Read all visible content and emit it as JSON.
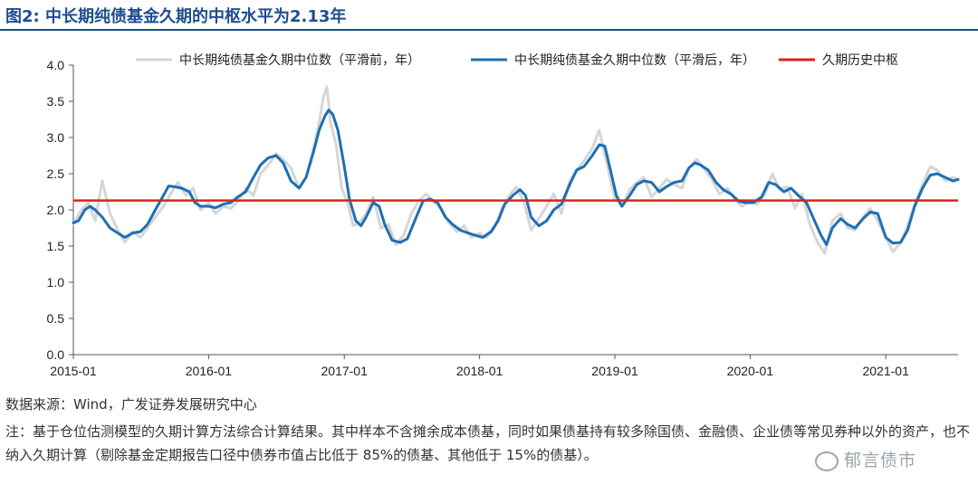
{
  "title": "图2:  中长期纯债基金久期的中枢水平为2.13年",
  "source": "数据来源：Wind，广发证券发展研究中心",
  "note": "注：基于仓位估测模型的久期计算方法综合计算结果。其中样本不含摊余成本债基，同时如果债基持有较多除国债、金融债、企业债等常见券种以外的资产，也不纳入久期计算（剔除基金定期报告口径中债券市值占比低于 85%的债基、其他低于 15%的债基）。",
  "watermark": "郁言债市",
  "chart_data": {
    "type": "line",
    "title": "",
    "xlabel": "",
    "ylabel": "",
    "x_ticks": [
      "2015-01",
      "2016-01",
      "2017-01",
      "2018-01",
      "2019-01",
      "2020-01",
      "2021-01"
    ],
    "y_ticks": [
      "0.0",
      "0.5",
      "1.0",
      "1.5",
      "2.0",
      "2.5",
      "3.0",
      "3.5",
      "4.0"
    ],
    "ylim": [
      0,
      4
    ],
    "xlim": [
      "2015-01-01",
      "2021-07-15"
    ],
    "legend_position": "top",
    "grid": false,
    "reference_line": {
      "name": "久期历史中枢",
      "value": 2.13,
      "color": "#e02020"
    },
    "series": [
      {
        "name": "中长期纯债基金久期中位数（平滑前，年）",
        "color": "#d6d6d6",
        "width": 3,
        "points": [
          [
            "2015-01-01",
            1.8
          ],
          [
            "2015-01-20",
            1.98
          ],
          [
            "2015-02-10",
            2.1
          ],
          [
            "2015-03-01",
            1.85
          ],
          [
            "2015-03-20",
            2.4
          ],
          [
            "2015-04-10",
            1.95
          ],
          [
            "2015-05-01",
            1.72
          ],
          [
            "2015-05-20",
            1.55
          ],
          [
            "2015-06-10",
            1.7
          ],
          [
            "2015-07-01",
            1.62
          ],
          [
            "2015-07-20",
            1.75
          ],
          [
            "2015-08-10",
            1.9
          ],
          [
            "2015-09-01",
            2.05
          ],
          [
            "2015-09-20",
            2.22
          ],
          [
            "2015-10-10",
            2.38
          ],
          [
            "2015-11-01",
            2.2
          ],
          [
            "2015-11-20",
            2.3
          ],
          [
            "2015-12-10",
            2.0
          ],
          [
            "2016-01-01",
            2.1
          ],
          [
            "2016-01-20",
            1.95
          ],
          [
            "2016-02-10",
            2.05
          ],
          [
            "2016-03-01",
            2.02
          ],
          [
            "2016-03-20",
            2.12
          ],
          [
            "2016-04-10",
            2.3
          ],
          [
            "2016-05-01",
            2.2
          ],
          [
            "2016-05-20",
            2.5
          ],
          [
            "2016-06-10",
            2.62
          ],
          [
            "2016-07-01",
            2.78
          ],
          [
            "2016-07-20",
            2.7
          ],
          [
            "2016-08-10",
            2.58
          ],
          [
            "2016-09-01",
            2.3
          ],
          [
            "2016-09-20",
            2.45
          ],
          [
            "2016-10-10",
            2.85
          ],
          [
            "2016-10-25",
            3.2
          ],
          [
            "2016-11-05",
            3.55
          ],
          [
            "2016-11-15",
            3.7
          ],
          [
            "2016-11-25",
            3.2
          ],
          [
            "2016-12-10",
            2.9
          ],
          [
            "2016-12-25",
            2.3
          ],
          [
            "2017-01-10",
            2.1
          ],
          [
            "2017-01-25",
            1.78
          ],
          [
            "2017-02-10",
            1.82
          ],
          [
            "2017-03-01",
            1.95
          ],
          [
            "2017-03-20",
            2.18
          ],
          [
            "2017-04-10",
            1.75
          ],
          [
            "2017-05-01",
            1.8
          ],
          [
            "2017-05-20",
            1.52
          ],
          [
            "2017-06-10",
            1.65
          ],
          [
            "2017-07-01",
            1.95
          ],
          [
            "2017-07-20",
            2.12
          ],
          [
            "2017-08-10",
            2.22
          ],
          [
            "2017-09-01",
            2.1
          ],
          [
            "2017-09-20",
            2.02
          ],
          [
            "2017-10-10",
            1.82
          ],
          [
            "2017-11-01",
            1.7
          ],
          [
            "2017-11-20",
            1.78
          ],
          [
            "2017-12-10",
            1.62
          ],
          [
            "2018-01-01",
            1.68
          ],
          [
            "2018-01-20",
            1.62
          ],
          [
            "2018-02-10",
            1.75
          ],
          [
            "2018-03-01",
            2.0
          ],
          [
            "2018-03-20",
            2.18
          ],
          [
            "2018-04-10",
            2.32
          ],
          [
            "2018-05-01",
            2.1
          ],
          [
            "2018-05-20",
            1.72
          ],
          [
            "2018-06-10",
            1.88
          ],
          [
            "2018-07-01",
            2.05
          ],
          [
            "2018-07-20",
            2.22
          ],
          [
            "2018-08-10",
            1.95
          ],
          [
            "2018-09-01",
            2.4
          ],
          [
            "2018-09-20",
            2.55
          ],
          [
            "2018-10-10",
            2.68
          ],
          [
            "2018-11-01",
            2.85
          ],
          [
            "2018-11-20",
            3.1
          ],
          [
            "2018-12-10",
            2.65
          ],
          [
            "2019-01-01",
            2.15
          ],
          [
            "2019-01-20",
            2.05
          ],
          [
            "2019-02-10",
            2.28
          ],
          [
            "2019-03-01",
            2.38
          ],
          [
            "2019-03-20",
            2.45
          ],
          [
            "2019-04-10",
            2.18
          ],
          [
            "2019-05-01",
            2.3
          ],
          [
            "2019-05-20",
            2.42
          ],
          [
            "2019-06-10",
            2.35
          ],
          [
            "2019-07-01",
            2.3
          ],
          [
            "2019-07-20",
            2.58
          ],
          [
            "2019-08-10",
            2.7
          ],
          [
            "2019-09-01",
            2.55
          ],
          [
            "2019-09-20",
            2.42
          ],
          [
            "2019-10-10",
            2.22
          ],
          [
            "2019-11-01",
            2.3
          ],
          [
            "2019-11-20",
            2.15
          ],
          [
            "2019-12-10",
            2.05
          ],
          [
            "2020-01-01",
            2.12
          ],
          [
            "2020-01-20",
            2.08
          ],
          [
            "2020-02-10",
            2.22
          ],
          [
            "2020-03-01",
            2.5
          ],
          [
            "2020-03-20",
            2.28
          ],
          [
            "2020-04-10",
            2.32
          ],
          [
            "2020-05-01",
            2.02
          ],
          [
            "2020-05-20",
            2.22
          ],
          [
            "2020-06-10",
            1.8
          ],
          [
            "2020-07-01",
            1.55
          ],
          [
            "2020-07-20",
            1.4
          ],
          [
            "2020-08-10",
            1.85
          ],
          [
            "2020-09-01",
            1.95
          ],
          [
            "2020-09-20",
            1.75
          ],
          [
            "2020-10-10",
            1.72
          ],
          [
            "2020-11-01",
            1.9
          ],
          [
            "2020-11-20",
            2.02
          ],
          [
            "2020-12-10",
            1.85
          ],
          [
            "2021-01-01",
            1.62
          ],
          [
            "2021-01-20",
            1.42
          ],
          [
            "2021-02-10",
            1.55
          ],
          [
            "2021-03-01",
            1.78
          ],
          [
            "2021-03-20",
            2.08
          ],
          [
            "2021-04-10",
            2.35
          ],
          [
            "2021-05-01",
            2.6
          ],
          [
            "2021-05-20",
            2.55
          ],
          [
            "2021-06-10",
            2.4
          ],
          [
            "2021-07-01",
            2.45
          ],
          [
            "2021-07-15",
            2.42
          ]
        ]
      },
      {
        "name": "中长期纯债基金久期中位数（平滑后，年）",
        "color": "#1f6fb2",
        "width": 3,
        "points": [
          [
            "2015-01-01",
            1.82
          ],
          [
            "2015-01-15",
            1.85
          ],
          [
            "2015-02-01",
            2.0
          ],
          [
            "2015-02-15",
            2.05
          ],
          [
            "2015-03-01",
            2.0
          ],
          [
            "2015-03-20",
            1.9
          ],
          [
            "2015-04-10",
            1.75
          ],
          [
            "2015-05-01",
            1.68
          ],
          [
            "2015-05-20",
            1.62
          ],
          [
            "2015-06-10",
            1.68
          ],
          [
            "2015-07-01",
            1.7
          ],
          [
            "2015-07-20",
            1.8
          ],
          [
            "2015-08-10",
            2.0
          ],
          [
            "2015-09-01",
            2.2
          ],
          [
            "2015-09-15",
            2.33
          ],
          [
            "2015-10-01",
            2.32
          ],
          [
            "2015-10-20",
            2.3
          ],
          [
            "2015-11-10",
            2.25
          ],
          [
            "2015-11-25",
            2.1
          ],
          [
            "2015-12-10",
            2.05
          ],
          [
            "2016-01-01",
            2.05
          ],
          [
            "2016-01-20",
            2.03
          ],
          [
            "2016-02-10",
            2.08
          ],
          [
            "2016-03-01",
            2.1
          ],
          [
            "2016-03-20",
            2.18
          ],
          [
            "2016-04-10",
            2.25
          ],
          [
            "2016-05-01",
            2.45
          ],
          [
            "2016-05-20",
            2.62
          ],
          [
            "2016-06-10",
            2.72
          ],
          [
            "2016-07-01",
            2.75
          ],
          [
            "2016-07-20",
            2.65
          ],
          [
            "2016-08-10",
            2.4
          ],
          [
            "2016-09-01",
            2.3
          ],
          [
            "2016-09-20",
            2.45
          ],
          [
            "2016-10-10",
            2.8
          ],
          [
            "2016-10-25",
            3.1
          ],
          [
            "2016-11-10",
            3.3
          ],
          [
            "2016-11-20",
            3.38
          ],
          [
            "2016-12-01",
            3.32
          ],
          [
            "2016-12-15",
            3.1
          ],
          [
            "2017-01-01",
            2.6
          ],
          [
            "2017-01-15",
            2.15
          ],
          [
            "2017-02-01",
            1.85
          ],
          [
            "2017-02-15",
            1.78
          ],
          [
            "2017-03-01",
            1.9
          ],
          [
            "2017-03-20",
            2.1
          ],
          [
            "2017-04-05",
            2.05
          ],
          [
            "2017-04-20",
            1.8
          ],
          [
            "2017-05-10",
            1.58
          ],
          [
            "2017-06-01",
            1.55
          ],
          [
            "2017-06-20",
            1.6
          ],
          [
            "2017-07-10",
            1.85
          ],
          [
            "2017-08-01",
            2.12
          ],
          [
            "2017-08-20",
            2.15
          ],
          [
            "2017-09-10",
            2.1
          ],
          [
            "2017-10-01",
            1.9
          ],
          [
            "2017-10-20",
            1.8
          ],
          [
            "2017-11-10",
            1.72
          ],
          [
            "2017-12-01",
            1.68
          ],
          [
            "2017-12-20",
            1.65
          ],
          [
            "2018-01-10",
            1.62
          ],
          [
            "2018-02-01",
            1.7
          ],
          [
            "2018-02-20",
            1.85
          ],
          [
            "2018-03-10",
            2.08
          ],
          [
            "2018-04-01",
            2.2
          ],
          [
            "2018-04-20",
            2.28
          ],
          [
            "2018-05-05",
            2.2
          ],
          [
            "2018-05-20",
            1.9
          ],
          [
            "2018-06-10",
            1.78
          ],
          [
            "2018-07-01",
            1.85
          ],
          [
            "2018-07-20",
            2.0
          ],
          [
            "2018-08-10",
            2.08
          ],
          [
            "2018-09-01",
            2.35
          ],
          [
            "2018-09-20",
            2.55
          ],
          [
            "2018-10-10",
            2.6
          ],
          [
            "2018-11-01",
            2.75
          ],
          [
            "2018-11-20",
            2.9
          ],
          [
            "2018-12-05",
            2.88
          ],
          [
            "2018-12-20",
            2.55
          ],
          [
            "2019-01-05",
            2.2
          ],
          [
            "2019-01-20",
            2.05
          ],
          [
            "2019-02-10",
            2.2
          ],
          [
            "2019-03-01",
            2.35
          ],
          [
            "2019-03-20",
            2.4
          ],
          [
            "2019-04-10",
            2.38
          ],
          [
            "2019-05-01",
            2.25
          ],
          [
            "2019-05-20",
            2.32
          ],
          [
            "2019-06-10",
            2.38
          ],
          [
            "2019-07-01",
            2.4
          ],
          [
            "2019-07-20",
            2.58
          ],
          [
            "2019-08-05",
            2.65
          ],
          [
            "2019-08-20",
            2.62
          ],
          [
            "2019-09-10",
            2.55
          ],
          [
            "2019-10-01",
            2.38
          ],
          [
            "2019-10-20",
            2.28
          ],
          [
            "2019-11-10",
            2.22
          ],
          [
            "2019-12-01",
            2.12
          ],
          [
            "2019-12-20",
            2.1
          ],
          [
            "2020-01-10",
            2.1
          ],
          [
            "2020-02-01",
            2.18
          ],
          [
            "2020-02-20",
            2.38
          ],
          [
            "2020-03-10",
            2.35
          ],
          [
            "2020-04-01",
            2.25
          ],
          [
            "2020-04-20",
            2.3
          ],
          [
            "2020-05-10",
            2.2
          ],
          [
            "2020-06-01",
            2.1
          ],
          [
            "2020-06-20",
            1.88
          ],
          [
            "2020-07-10",
            1.65
          ],
          [
            "2020-07-25",
            1.52
          ],
          [
            "2020-08-10",
            1.75
          ],
          [
            "2020-09-01",
            1.88
          ],
          [
            "2020-09-20",
            1.8
          ],
          [
            "2020-10-10",
            1.75
          ],
          [
            "2020-11-01",
            1.88
          ],
          [
            "2020-11-20",
            1.97
          ],
          [
            "2020-12-10",
            1.95
          ],
          [
            "2021-01-01",
            1.62
          ],
          [
            "2021-01-20",
            1.54
          ],
          [
            "2021-02-10",
            1.55
          ],
          [
            "2021-03-01",
            1.72
          ],
          [
            "2021-03-20",
            2.05
          ],
          [
            "2021-04-10",
            2.3
          ],
          [
            "2021-05-01",
            2.48
          ],
          [
            "2021-05-20",
            2.5
          ],
          [
            "2021-06-10",
            2.45
          ],
          [
            "2021-07-01",
            2.4
          ],
          [
            "2021-07-15",
            2.42
          ]
        ]
      }
    ]
  }
}
